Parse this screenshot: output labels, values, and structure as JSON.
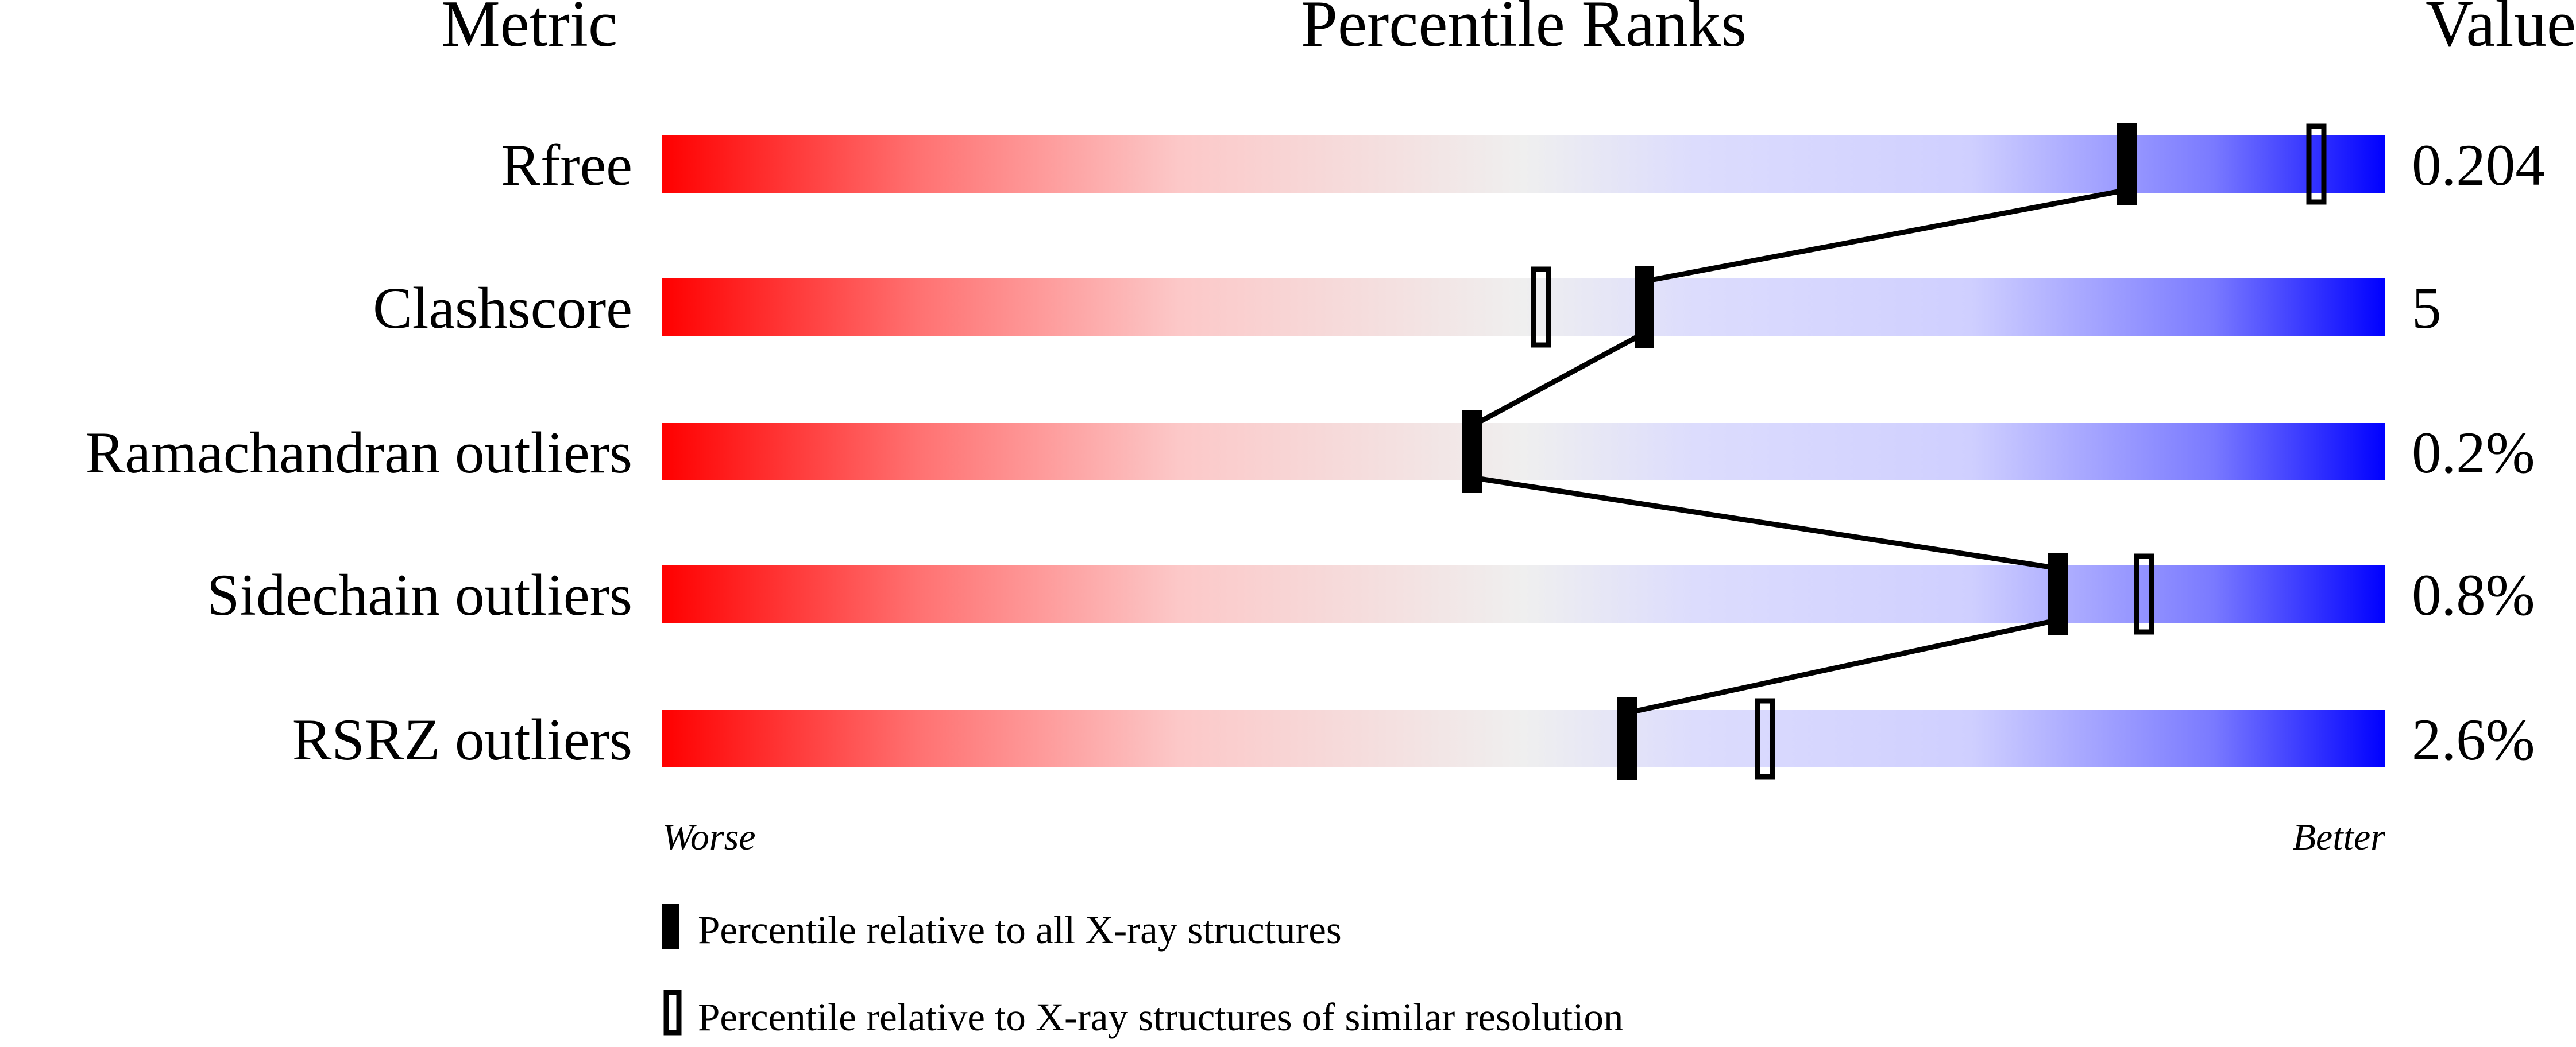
{
  "chart_data": {
    "type": "bar",
    "headers": {
      "metric": "Metric",
      "title": "Percentile Ranks",
      "value": "Value"
    },
    "xlim": [
      0,
      100
    ],
    "rows": [
      {
        "metric": "Rfree",
        "value": "0.204",
        "percentile_all": 85,
        "percentile_similar": 96
      },
      {
        "metric": "Clashscore",
        "value": "5",
        "percentile_all": 57,
        "percentile_similar": 51
      },
      {
        "metric": "Ramachandran outliers",
        "value": "0.2%",
        "percentile_all": 47,
        "percentile_similar": 47
      },
      {
        "metric": "Sidechain outliers",
        "value": "0.8%",
        "percentile_all": 81,
        "percentile_similar": 86
      },
      {
        "metric": "RSRZ outliers",
        "value": "2.6%",
        "percentile_all": 56,
        "percentile_similar": 64
      }
    ],
    "axis_labels": {
      "left": "Worse",
      "right": "Better"
    },
    "legend": [
      {
        "marker": "filled",
        "label": "Percentile relative to all X-ray structures"
      },
      {
        "marker": "open",
        "label": "Percentile relative to X-ray structures of similar resolution"
      }
    ],
    "colors": {
      "worse": "#ff0000",
      "middle": "#efefef",
      "better": "#0000ff",
      "marker": "#000000"
    }
  }
}
